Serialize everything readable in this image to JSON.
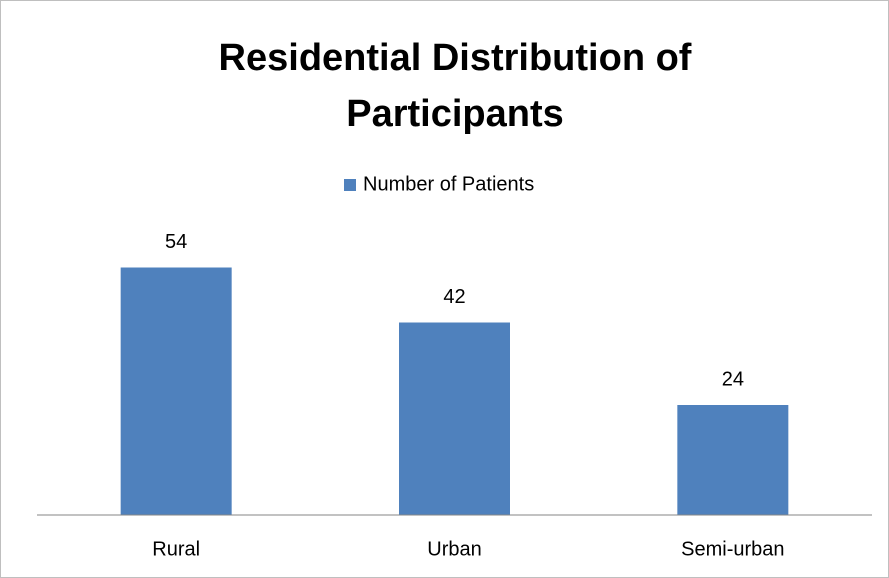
{
  "chart_data": {
    "type": "bar",
    "title": "Residential Distribution of Participants",
    "categories": [
      "Rural",
      "Urban",
      "Semi-urban"
    ],
    "series": [
      {
        "name": "Number of Patients",
        "color": "#4f81bd",
        "values": [
          54,
          42,
          24
        ]
      }
    ],
    "ylim": [
      0,
      60
    ],
    "legend": "top"
  }
}
